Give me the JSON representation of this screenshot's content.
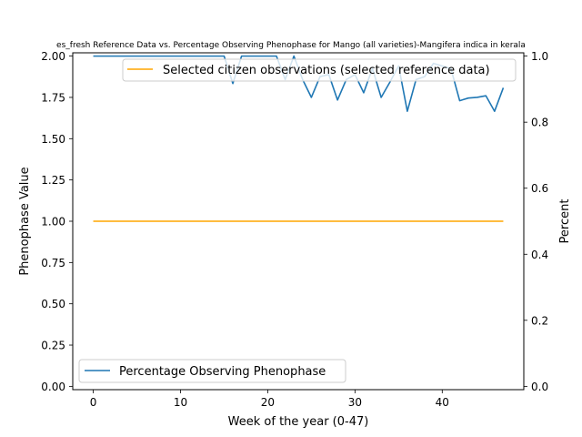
{
  "chart_data": {
    "type": "line",
    "title": "es_fresh Reference Data vs. Percentage Observing Phenophase for Mango (all varieties)-Mangifera indica in kerala",
    "xlabel": "Week of the year (0-47)",
    "ylabel_left": "Phenophase Value",
    "ylabel_right": "Percent",
    "xlim": [
      -2.35,
      49.35
    ],
    "ylim_left": [
      -0.02,
      2.02
    ],
    "ylim_right": [
      -0.01,
      1.01
    ],
    "x_ticks": [
      0,
      10,
      20,
      30,
      40
    ],
    "y_ticks_left": [
      "0.00",
      "0.25",
      "0.50",
      "0.75",
      "1.00",
      "1.25",
      "1.50",
      "1.75",
      "2.00"
    ],
    "y_ticks_right": [
      "0.0",
      "0.2",
      "0.4",
      "0.6",
      "0.8",
      "1.0"
    ],
    "series": [
      {
        "name": "Selected citizen observations (selected reference data)",
        "axis": "left",
        "color": "#ffa500",
        "x": [
          0,
          47
        ],
        "values": [
          1.0,
          1.0
        ]
      },
      {
        "name": "Percentage Observing Phenophase",
        "axis": "right",
        "color": "#1f77b4",
        "x": [
          0,
          1,
          2,
          3,
          4,
          5,
          6,
          7,
          8,
          9,
          10,
          11,
          12,
          13,
          14,
          15,
          16,
          17,
          18,
          19,
          20,
          21,
          22,
          23,
          24,
          25,
          26,
          27,
          28,
          29,
          30,
          31,
          32,
          33,
          34,
          35,
          36,
          37,
          38,
          39,
          40,
          41,
          42,
          43,
          44,
          45,
          46,
          47
        ],
        "values": [
          1.0,
          1.0,
          1.0,
          1.0,
          1.0,
          1.0,
          1.0,
          1.0,
          1.0,
          1.0,
          1.0,
          1.0,
          1.0,
          1.0,
          1.0,
          1.0,
          0.917,
          1.0,
          1.0,
          1.0,
          1.0,
          1.0,
          0.929,
          1.0,
          0.929,
          0.875,
          0.938,
          0.944,
          0.867,
          0.929,
          0.944,
          0.889,
          0.963,
          0.875,
          0.921,
          0.97,
          0.833,
          0.929,
          0.938,
          0.978,
          0.97,
          0.962,
          0.865,
          0.873,
          0.875,
          0.88,
          0.833,
          0.904
        ]
      }
    ],
    "legends": [
      {
        "position": "top-right",
        "entries": [
          "Selected citizen observations (selected reference data)"
        ]
      },
      {
        "position": "lower-left",
        "entries": [
          "Percentage Observing Phenophase"
        ]
      }
    ]
  }
}
